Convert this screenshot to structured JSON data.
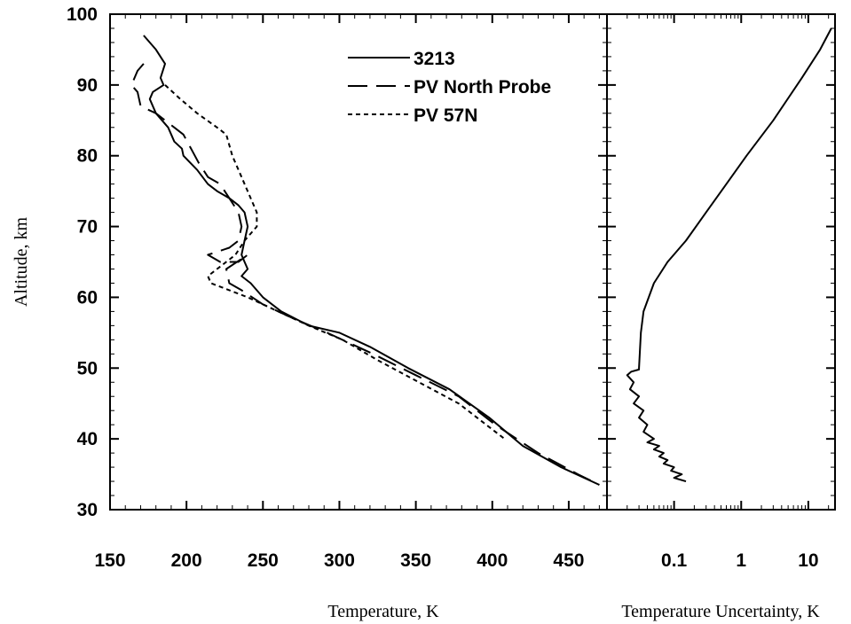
{
  "chart_data": [
    {
      "type": "line",
      "xlabel": "Temperature, K",
      "ylabel": "Altitude, km",
      "xlim": [
        150,
        475
      ],
      "ylim": [
        30,
        100
      ],
      "xticks": [
        150,
        200,
        250,
        300,
        350,
        400,
        450
      ],
      "yticks": [
        30,
        40,
        50,
        60,
        70,
        80,
        90,
        100
      ],
      "grid": false,
      "legend": "top-right",
      "series": [
        {
          "name": "3213",
          "style": "solid",
          "points": [
            [
              172,
              97
            ],
            [
              180,
              95
            ],
            [
              186,
              93
            ],
            [
              183,
              91
            ],
            [
              185,
              90
            ],
            [
              178,
              89
            ],
            [
              176,
              88
            ],
            [
              180,
              86
            ],
            [
              188,
              84
            ],
            [
              192,
              82
            ],
            [
              197,
              81
            ],
            [
              198,
              80
            ],
            [
              207,
              78
            ],
            [
              214,
              76
            ],
            [
              220,
              75
            ],
            [
              228,
              74
            ],
            [
              234,
              73
            ],
            [
              238,
              72
            ],
            [
              240,
              70
            ],
            [
              238,
              68
            ],
            [
              236,
              66
            ],
            [
              238,
              65
            ],
            [
              240,
              64
            ],
            [
              236,
              63
            ],
            [
              242,
              62
            ],
            [
              250,
              60
            ],
            [
              262,
              58
            ],
            [
              280,
              56
            ],
            [
              300,
              55
            ],
            [
              320,
              53
            ],
            [
              345,
              50
            ],
            [
              372,
              47
            ],
            [
              398,
              43
            ],
            [
              420,
              39
            ],
            [
              445,
              36
            ],
            [
              470,
              33.5
            ]
          ]
        },
        {
          "name": "PV North Probe",
          "style": "dashed",
          "points": [
            [
              172,
              93
            ],
            [
              168,
              92
            ],
            [
              166,
              91
            ],
            [
              164,
              90
            ],
            [
              168,
              89
            ],
            [
              170,
              87
            ],
            [
              180,
              86
            ],
            [
              192,
              84
            ],
            [
              198,
              83
            ],
            [
              203,
              81
            ],
            [
              208,
              79
            ],
            [
              214,
              77
            ],
            [
              222,
              76
            ],
            [
              228,
              74
            ],
            [
              234,
              72
            ],
            [
              236,
              70
            ],
            [
              234,
              68
            ],
            [
              228,
              67
            ],
            [
              214,
              66
            ],
            [
              222,
              65
            ],
            [
              234,
              65
            ],
            [
              240,
              66
            ],
            [
              226,
              64
            ],
            [
              228,
              62
            ],
            [
              236,
              61
            ],
            [
              250,
              59
            ],
            [
              270,
              57
            ],
            [
              292,
              55
            ],
            [
              322,
              52
            ],
            [
              350,
              49
            ],
            [
              378,
              46
            ],
            [
              402,
              42
            ],
            [
              430,
              38
            ],
            [
              456,
              35
            ],
            [
              470,
              33.5
            ]
          ]
        },
        {
          "name": "PV 57N",
          "style": "dotted",
          "points": [
            [
              186,
              90
            ],
            [
              196,
              88
            ],
            [
              207,
              86
            ],
            [
              220,
              84
            ],
            [
              226,
              83
            ],
            [
              230,
              80
            ],
            [
              236,
              77
            ],
            [
              242,
              74
            ],
            [
              246,
              72
            ],
            [
              246,
              70
            ],
            [
              238,
              68
            ],
            [
              232,
              66
            ],
            [
              220,
              64
            ],
            [
              214,
              63
            ],
            [
              216,
              62
            ],
            [
              228,
              61
            ],
            [
              240,
              60
            ],
            [
              260,
              58
            ],
            [
              280,
              56
            ],
            [
              302,
              54
            ],
            [
              326,
              51
            ],
            [
              352,
              48
            ],
            [
              378,
              45
            ],
            [
              396,
              42
            ],
            [
              408,
              40
            ]
          ]
        }
      ]
    },
    {
      "type": "line",
      "xlabel": "Temperature Uncertainty, K",
      "xscale": "log",
      "xlim": [
        0.01,
        25
      ],
      "ylim": [
        30,
        100
      ],
      "xticks": [
        0.1,
        1,
        10
      ],
      "xticklabels": [
        "0.1",
        "1",
        "10"
      ],
      "grid": false,
      "series": [
        {
          "points": [
            [
              0.15,
              34
            ],
            [
              0.1,
              34.5
            ],
            [
              0.13,
              35
            ],
            [
              0.09,
              35.5
            ],
            [
              0.1,
              36
            ],
            [
              0.07,
              36.5
            ],
            [
              0.08,
              37
            ],
            [
              0.06,
              37.5
            ],
            [
              0.07,
              38
            ],
            [
              0.05,
              38.5
            ],
            [
              0.06,
              39
            ],
            [
              0.04,
              39.5
            ],
            [
              0.05,
              40
            ],
            [
              0.035,
              41
            ],
            [
              0.04,
              42
            ],
            [
              0.03,
              43
            ],
            [
              0.035,
              44
            ],
            [
              0.025,
              45
            ],
            [
              0.03,
              46
            ],
            [
              0.022,
              47
            ],
            [
              0.025,
              48
            ],
            [
              0.02,
              49
            ],
            [
              0.023,
              49.5
            ],
            [
              0.03,
              49.8
            ],
            [
              0.03,
              50
            ],
            [
              0.032,
              55
            ],
            [
              0.035,
              58
            ],
            [
              0.05,
              62
            ],
            [
              0.08,
              65
            ],
            [
              0.15,
              68
            ],
            [
              0.3,
              72
            ],
            [
              0.6,
              76
            ],
            [
              1.2,
              80
            ],
            [
              3,
              85
            ],
            [
              8,
              91
            ],
            [
              15,
              95
            ],
            [
              22,
              98
            ]
          ]
        }
      ]
    }
  ]
}
